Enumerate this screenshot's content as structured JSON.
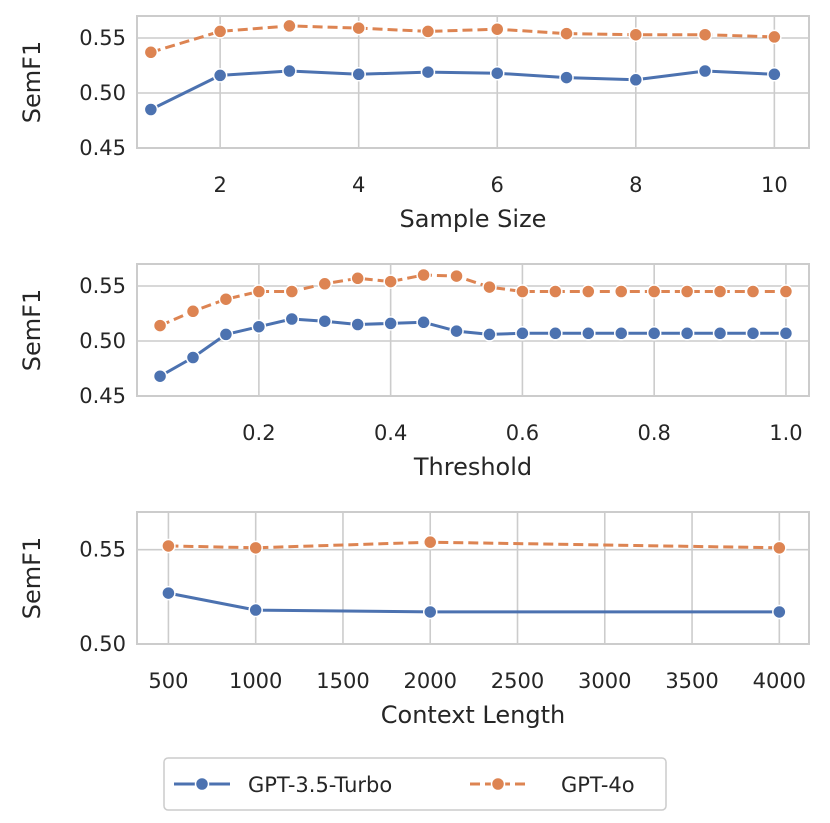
{
  "chart_data": [
    {
      "type": "line",
      "xlabel": "Sample Size",
      "ylabel": "SemF1",
      "xlim": [
        0.8,
        10.5
      ],
      "ylim": [
        0.45,
        0.57
      ],
      "xticks": [
        2,
        4,
        6,
        8,
        10
      ],
      "xtick_labels": [
        "2",
        "4",
        "6",
        "8",
        "10"
      ],
      "yticks": [
        0.45,
        0.5,
        0.55
      ],
      "ytick_labels": [
        "0.45",
        "0.50",
        "0.55"
      ],
      "grid": true,
      "x": [
        1,
        2,
        3,
        4,
        5,
        6,
        7,
        8,
        9,
        10
      ],
      "series": [
        {
          "name": "GPT-3.5-Turbo",
          "values": [
            0.485,
            0.516,
            0.52,
            0.517,
            0.519,
            0.518,
            0.514,
            0.512,
            0.52,
            0.517
          ]
        },
        {
          "name": "GPT-4o",
          "values": [
            0.537,
            0.556,
            0.561,
            0.559,
            0.556,
            0.558,
            0.554,
            0.553,
            0.553,
            0.551
          ]
        }
      ]
    },
    {
      "type": "line",
      "xlabel": "Threshold",
      "ylabel": "SemF1",
      "xlim": [
        0.015,
        1.035
      ],
      "ylim": [
        0.45,
        0.57
      ],
      "xticks": [
        0.2,
        0.4,
        0.6,
        0.8,
        1.0
      ],
      "xtick_labels": [
        "0.2",
        "0.4",
        "0.6",
        "0.8",
        "1.0"
      ],
      "yticks": [
        0.45,
        0.5,
        0.55
      ],
      "ytick_labels": [
        "0.45",
        "0.50",
        "0.55"
      ],
      "grid": true,
      "x": [
        0.05,
        0.1,
        0.15,
        0.2,
        0.25,
        0.3,
        0.35,
        0.4,
        0.45,
        0.5,
        0.55,
        0.6,
        0.65,
        0.7,
        0.75,
        0.8,
        0.85,
        0.9,
        0.95,
        1.0
      ],
      "series": [
        {
          "name": "GPT-3.5-Turbo",
          "values": [
            0.468,
            0.485,
            0.506,
            0.513,
            0.52,
            0.518,
            0.515,
            0.516,
            0.517,
            0.509,
            0.506,
            0.507,
            0.507,
            0.507,
            0.507,
            0.507,
            0.507,
            0.507,
            0.507,
            0.507
          ]
        },
        {
          "name": "GPT-4o",
          "values": [
            0.514,
            0.527,
            0.538,
            0.545,
            0.545,
            0.552,
            0.557,
            0.554,
            0.56,
            0.559,
            0.549,
            0.545,
            0.545,
            0.545,
            0.545,
            0.545,
            0.545,
            0.545,
            0.545,
            0.545
          ]
        }
      ]
    },
    {
      "type": "line",
      "xlabel": "Context Length",
      "ylabel": "SemF1",
      "xlim": [
        320,
        4170
      ],
      "ylim": [
        0.5,
        0.57
      ],
      "xticks": [
        500,
        1000,
        1500,
        2000,
        2500,
        3000,
        3500,
        4000
      ],
      "xtick_labels": [
        "500",
        "1000",
        "1500",
        "2000",
        "2500",
        "3000",
        "3500",
        "4000"
      ],
      "yticks": [
        0.5,
        0.55
      ],
      "ytick_labels": [
        "0.50",
        "0.55"
      ],
      "grid": true,
      "x": [
        500,
        1000,
        2000,
        4000
      ],
      "series": [
        {
          "name": "GPT-3.5-Turbo",
          "values": [
            0.527,
            0.518,
            0.517,
            0.517
          ]
        },
        {
          "name": "GPT-4o",
          "values": [
            0.552,
            0.551,
            0.554,
            0.551
          ]
        }
      ]
    }
  ],
  "legend": {
    "placement": "bottom-center",
    "items": [
      {
        "name": "GPT-3.5-Turbo",
        "color": "#4c72b0",
        "dash": "solid"
      },
      {
        "name": "GPT-4o",
        "color": "#dd8452",
        "dash": "dashed"
      }
    ]
  },
  "colors": {
    "gpt35": "#4c72b0",
    "gpt4o": "#dd8452",
    "grid": "#cccccc",
    "frame": "#cccccc"
  }
}
